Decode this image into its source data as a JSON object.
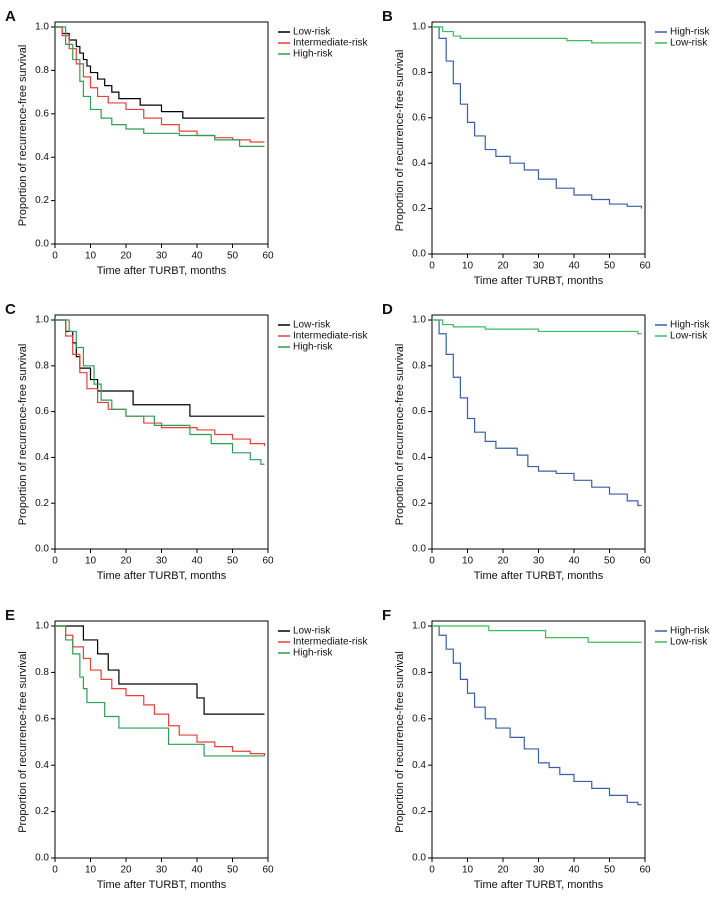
{
  "chart_data": [
    {
      "type": "line",
      "step": true,
      "panel_label": "A",
      "xlabel": "Time after TURBT, months",
      "ylabel": "Proportion of recurrence-free survival",
      "xlim": [
        0,
        60
      ],
      "ylim": [
        0,
        1
      ],
      "xticks": [
        0,
        10,
        20,
        30,
        40,
        50,
        60
      ],
      "yticks": [
        {
          "value": 0,
          "label": "0.0"
        },
        0.2,
        0.4,
        0.6,
        0.8,
        {
          "value": 1,
          "label": "1.0"
        }
      ],
      "series": [
        {
          "name": "Low-risk",
          "color": "#000000",
          "x": [
            0,
            2,
            4,
            6,
            7,
            8,
            9,
            10,
            12,
            14,
            16,
            18,
            24,
            30,
            36,
            59
          ],
          "values": [
            1,
            0.97,
            0.94,
            0.91,
            0.88,
            0.85,
            0.82,
            0.79,
            0.76,
            0.73,
            0.7,
            0.67,
            0.64,
            0.61,
            0.58,
            0.58
          ]
        },
        {
          "name": "Intermediate-risk",
          "color": "#e8413c",
          "x": [
            0,
            2,
            4,
            6,
            8,
            10,
            12,
            15,
            20,
            25,
            30,
            35,
            40,
            45,
            50,
            55,
            59
          ],
          "values": [
            1,
            0.96,
            0.9,
            0.83,
            0.77,
            0.72,
            0.68,
            0.65,
            0.62,
            0.58,
            0.55,
            0.52,
            0.5,
            0.49,
            0.48,
            0.47,
            0.47
          ]
        },
        {
          "name": "High-risk",
          "color": "#2f9e55",
          "x": [
            0,
            3,
            5,
            7,
            8,
            10,
            13,
            16,
            20,
            25,
            35,
            45,
            52,
            59
          ],
          "values": [
            1,
            0.92,
            0.85,
            0.75,
            0.68,
            0.62,
            0.58,
            0.55,
            0.53,
            0.51,
            0.5,
            0.48,
            0.45,
            0.45
          ]
        }
      ]
    },
    {
      "type": "line",
      "step": true,
      "panel_label": "B",
      "xlabel": "Time after TURBT, months",
      "ylabel": "Proportion of recurrence-free survival",
      "xlim": [
        0,
        60
      ],
      "ylim": [
        0,
        1
      ],
      "xticks": [
        0,
        10,
        20,
        30,
        40,
        50,
        60
      ],
      "yticks": [
        {
          "value": 0,
          "label": "0.0"
        },
        0.2,
        0.4,
        0.6,
        0.8,
        {
          "value": 1,
          "label": "1.0"
        }
      ],
      "series": [
        {
          "name": "High-risk",
          "color": "#3a5fa8",
          "x": [
            0,
            2,
            4,
            6,
            8,
            10,
            12,
            15,
            18,
            22,
            26,
            30,
            35,
            40,
            45,
            50,
            55,
            59
          ],
          "values": [
            1,
            0.95,
            0.85,
            0.75,
            0.66,
            0.58,
            0.52,
            0.46,
            0.43,
            0.4,
            0.37,
            0.33,
            0.29,
            0.26,
            0.24,
            0.22,
            0.21,
            0.2
          ]
        },
        {
          "name": "Low-risk",
          "color": "#3dbb5e",
          "x": [
            0,
            3,
            6,
            8,
            35,
            38,
            45,
            59
          ],
          "values": [
            1,
            0.98,
            0.96,
            0.95,
            0.95,
            0.94,
            0.93,
            0.93
          ]
        }
      ]
    },
    {
      "type": "line",
      "step": true,
      "panel_label": "C",
      "xlabel": "Time after TURBT, months",
      "ylabel": "Proportion of recurrence-free survival",
      "xlim": [
        0,
        60
      ],
      "ylim": [
        0,
        1
      ],
      "xticks": [
        0,
        10,
        20,
        30,
        40,
        50,
        60
      ],
      "yticks": [
        {
          "value": 0,
          "label": "0.0"
        },
        0.2,
        0.4,
        0.6,
        0.8,
        {
          "value": 1,
          "label": "1.0"
        }
      ],
      "series": [
        {
          "name": "Low-risk",
          "color": "#000000",
          "x": [
            0,
            3,
            5,
            6,
            7,
            10,
            12,
            22,
            38,
            59
          ],
          "values": [
            1,
            0.95,
            0.9,
            0.84,
            0.79,
            0.74,
            0.69,
            0.63,
            0.58,
            0.58
          ]
        },
        {
          "name": "Intermediate-risk",
          "color": "#e8413c",
          "x": [
            0,
            3,
            5,
            7,
            9,
            12,
            15,
            20,
            25,
            30,
            40,
            45,
            50,
            55,
            59
          ],
          "values": [
            1,
            0.93,
            0.85,
            0.77,
            0.7,
            0.64,
            0.61,
            0.58,
            0.55,
            0.53,
            0.52,
            0.5,
            0.48,
            0.46,
            0.45
          ]
        },
        {
          "name": "High-risk",
          "color": "#2f9e55",
          "x": [
            0,
            4,
            6,
            8,
            11,
            13,
            16,
            20,
            28,
            38,
            44,
            50,
            55,
            58,
            59
          ],
          "values": [
            1,
            0.95,
            0.88,
            0.8,
            0.72,
            0.65,
            0.61,
            0.58,
            0.54,
            0.5,
            0.46,
            0.42,
            0.39,
            0.37,
            0.37
          ]
        }
      ]
    },
    {
      "type": "line",
      "step": true,
      "panel_label": "D",
      "xlabel": "Time after TURBT, months",
      "ylabel": "Proportion of recurrence-free survival",
      "xlim": [
        0,
        60
      ],
      "ylim": [
        0,
        1
      ],
      "xticks": [
        0,
        10,
        20,
        30,
        40,
        50,
        60
      ],
      "yticks": [
        {
          "value": 0,
          "label": "0.0"
        },
        0.2,
        0.4,
        0.6,
        0.8,
        {
          "value": 1,
          "label": "1.0"
        }
      ],
      "series": [
        {
          "name": "High-risk",
          "color": "#3a5fa8",
          "x": [
            0,
            2,
            4,
            6,
            8,
            10,
            12,
            15,
            18,
            24,
            27,
            30,
            35,
            40,
            45,
            50,
            55,
            58,
            59
          ],
          "values": [
            1,
            0.94,
            0.85,
            0.75,
            0.66,
            0.57,
            0.51,
            0.47,
            0.44,
            0.41,
            0.36,
            0.34,
            0.33,
            0.3,
            0.27,
            0.24,
            0.21,
            0.19,
            0.19
          ]
        },
        {
          "name": "Low-risk",
          "color": "#3dbb5e",
          "x": [
            0,
            3,
            6,
            15,
            30,
            58,
            59
          ],
          "values": [
            1,
            0.98,
            0.97,
            0.96,
            0.95,
            0.94,
            0.94
          ]
        }
      ]
    },
    {
      "type": "line",
      "step": true,
      "panel_label": "E",
      "xlabel": "Time after TURBT, months",
      "ylabel": "Proportion of recurrence-free survival",
      "xlim": [
        0,
        60
      ],
      "ylim": [
        0,
        1
      ],
      "xticks": [
        0,
        10,
        20,
        30,
        40,
        50,
        60
      ],
      "yticks": [
        {
          "value": 0,
          "label": "0.0"
        },
        0.2,
        0.4,
        0.6,
        0.8,
        {
          "value": 1,
          "label": "1.0"
        }
      ],
      "series": [
        {
          "name": "Low-risk",
          "color": "#000000",
          "x": [
            0,
            8,
            12,
            15,
            18,
            40,
            42,
            59
          ],
          "values": [
            1,
            0.94,
            0.88,
            0.81,
            0.75,
            0.69,
            0.62,
            0.62
          ]
        },
        {
          "name": "Intermediate-risk",
          "color": "#e8413c",
          "x": [
            0,
            3,
            5,
            8,
            10,
            13,
            16,
            20,
            25,
            28,
            32,
            35,
            40,
            45,
            50,
            55,
            59
          ],
          "values": [
            1,
            0.96,
            0.91,
            0.86,
            0.81,
            0.77,
            0.73,
            0.7,
            0.66,
            0.62,
            0.57,
            0.53,
            0.5,
            0.48,
            0.46,
            0.45,
            0.44
          ]
        },
        {
          "name": "High-risk",
          "color": "#2f9e55",
          "x": [
            0,
            3,
            5,
            7,
            8,
            9,
            14,
            18,
            32,
            42,
            59
          ],
          "values": [
            1,
            0.94,
            0.88,
            0.78,
            0.73,
            0.67,
            0.61,
            0.56,
            0.49,
            0.44,
            0.44
          ]
        }
      ]
    },
    {
      "type": "line",
      "step": true,
      "panel_label": "F",
      "xlabel": "Time after TURBT, months",
      "ylabel": "Proportion of recurrence-free survival",
      "xlim": [
        0,
        60
      ],
      "ylim": [
        0,
        1
      ],
      "xticks": [
        0,
        10,
        20,
        30,
        40,
        50,
        60
      ],
      "yticks": [
        {
          "value": 0,
          "label": "0.0"
        },
        0.2,
        0.4,
        0.6,
        0.8,
        {
          "value": 1,
          "label": "1.0"
        }
      ],
      "series": [
        {
          "name": "High-risk",
          "color": "#3a5fa8",
          "x": [
            0,
            2,
            4,
            6,
            8,
            10,
            12,
            15,
            18,
            22,
            26,
            30,
            33,
            36,
            40,
            45,
            50,
            55,
            58,
            59
          ],
          "values": [
            1,
            0.96,
            0.9,
            0.84,
            0.77,
            0.71,
            0.65,
            0.6,
            0.56,
            0.52,
            0.47,
            0.41,
            0.39,
            0.36,
            0.33,
            0.3,
            0.27,
            0.24,
            0.23,
            0.23
          ]
        },
        {
          "name": "Low-risk",
          "color": "#3dbb5e",
          "x": [
            0,
            16,
            32,
            44,
            59
          ],
          "values": [
            1,
            0.98,
            0.95,
            0.93,
            0.93
          ]
        }
      ]
    }
  ]
}
